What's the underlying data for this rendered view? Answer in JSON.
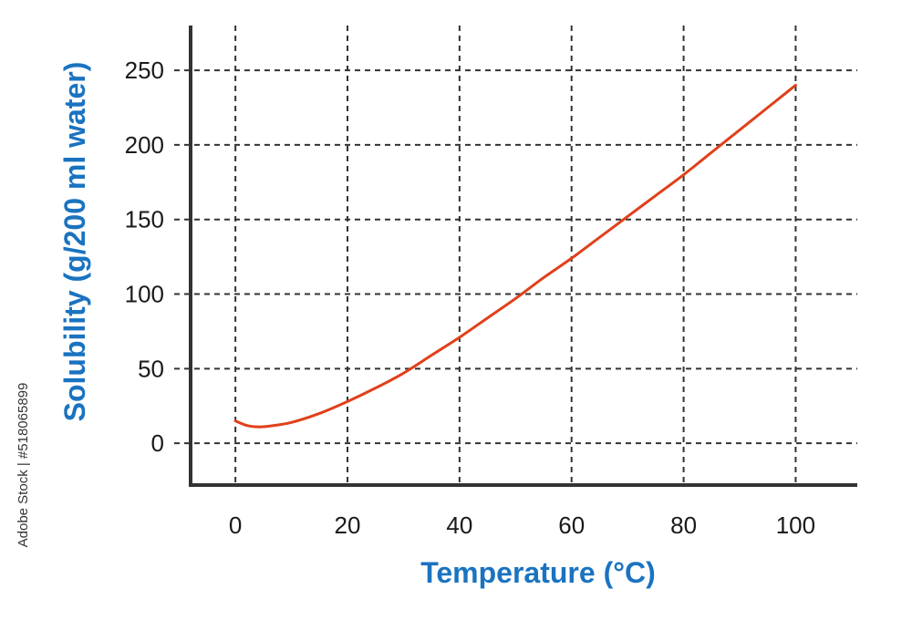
{
  "colors": {
    "axis": "#333333",
    "grid": "#333333",
    "series": "#e0401a",
    "axis_title": "#1a73c0",
    "tick_text": "#1a1a1a"
  },
  "watermark": "Adobe Stock | #518065899",
  "chart_data": {
    "type": "line",
    "title": "",
    "xlabel": "Temperature (°C)",
    "ylabel": "Solubility (g/200 ml water)",
    "xlim": [
      -8,
      111
    ],
    "ylim": [
      -28,
      280
    ],
    "grid": true,
    "grid_style": "dashed",
    "legend": "none",
    "xticks": [
      0,
      20,
      40,
      60,
      80,
      100
    ],
    "xtick_labels": [
      "0",
      "20",
      "40",
      "60",
      "80",
      "100"
    ],
    "yticks": [
      0,
      50,
      100,
      150,
      200,
      250
    ],
    "ytick_labels": [
      "0",
      "50",
      "100",
      "150",
      "200",
      "250"
    ],
    "series": [
      {
        "x": [
          0,
          2,
          4,
          6,
          10,
          15,
          20,
          25,
          30,
          35,
          40,
          45,
          50,
          55,
          60,
          65,
          70,
          75,
          80,
          85,
          90,
          95,
          100
        ],
        "y": [
          15,
          12,
          11,
          11.5,
          14,
          20,
          28,
          37,
          47,
          59,
          71,
          84,
          97,
          111,
          124,
          138,
          152,
          166,
          180,
          195,
          210,
          225,
          240
        ]
      }
    ]
  }
}
